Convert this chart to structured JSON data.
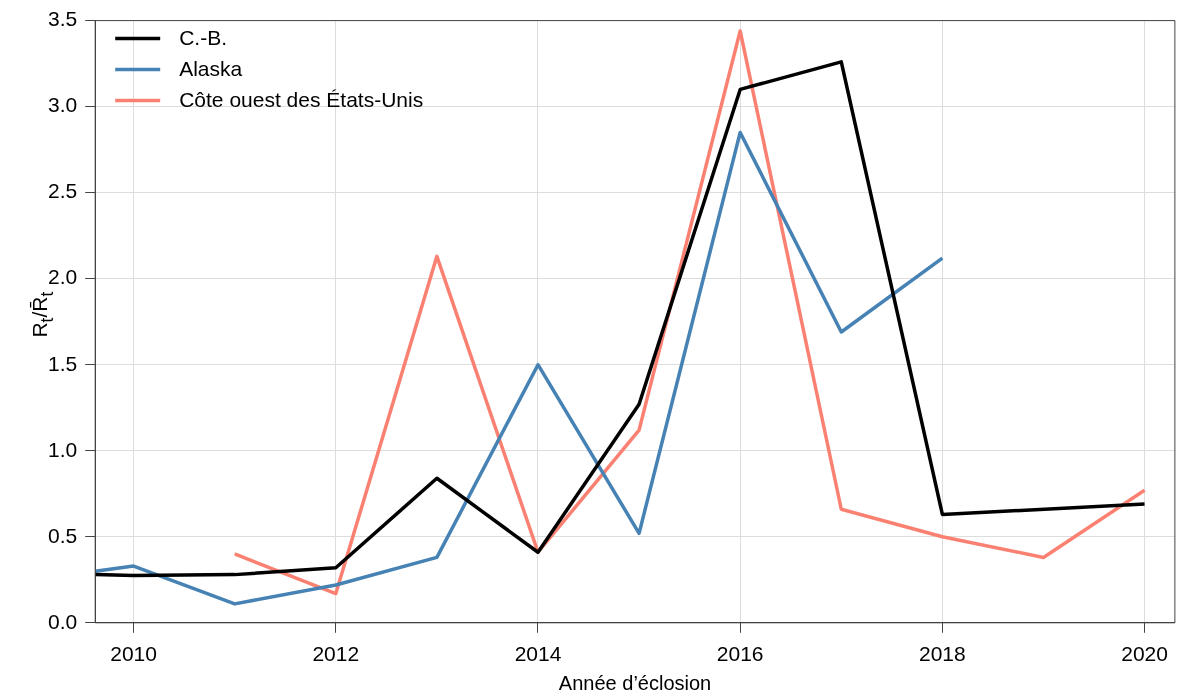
{
  "chart_data": {
    "type": "line",
    "xlabel": "Année d’éclosion",
    "ylabel": "R$_{t}$/R̄$_{t}$",
    "xlim": [
      2009.62,
      2020.3
    ],
    "xticks": [
      2010,
      2012,
      2014,
      2016,
      2018,
      2020
    ],
    "ylim": [
      0,
      3.5
    ],
    "yticks": [
      {
        "value": 0,
        "label": "0.0"
      },
      {
        "value": 0.5,
        "label": "0.5"
      },
      {
        "value": 1,
        "label": "1.0"
      },
      {
        "value": 1.5,
        "label": "1.5"
      },
      {
        "value": 2,
        "label": "2.0"
      },
      {
        "value": 2.5,
        "label": "2.5"
      },
      {
        "value": 3,
        "label": "3.0"
      },
      {
        "value": 3.5,
        "label": "3.5"
      }
    ],
    "grid": true,
    "legend": "top left",
    "marker": "none",
    "line_style": "solid",
    "series": [
      {
        "name": "C.-B.",
        "color": "#000000",
        "x": [
          2009.62,
          2010,
          2011,
          2012,
          2013,
          2014,
          2015,
          2016,
          2017,
          2018,
          2020
        ],
        "values": [
          0.28,
          0.275,
          0.28,
          0.32,
          0.84,
          0.41,
          1.27,
          3.1,
          3.26,
          0.63,
          0.69
        ]
      },
      {
        "name": "Alaska",
        "color": "#4682b4",
        "x": [
          2009.62,
          2010,
          2011,
          2012,
          2013,
          2014,
          2015,
          2016,
          2017,
          2018
        ],
        "values": [
          0.3,
          0.33,
          0.11,
          0.22,
          0.38,
          1.5,
          0.52,
          2.85,
          1.69,
          2.12
        ]
      },
      {
        "name": "Côte ouest des États-Unis",
        "color": "#fa8072",
        "x": [
          2011,
          2012,
          2013,
          2014,
          2015,
          2016,
          2017,
          2018,
          2019,
          2020
        ],
        "values": [
          0.4,
          0.17,
          2.13,
          0.41,
          1.12,
          3.44,
          0.66,
          0.5,
          0.38,
          0.77
        ]
      }
    ]
  }
}
